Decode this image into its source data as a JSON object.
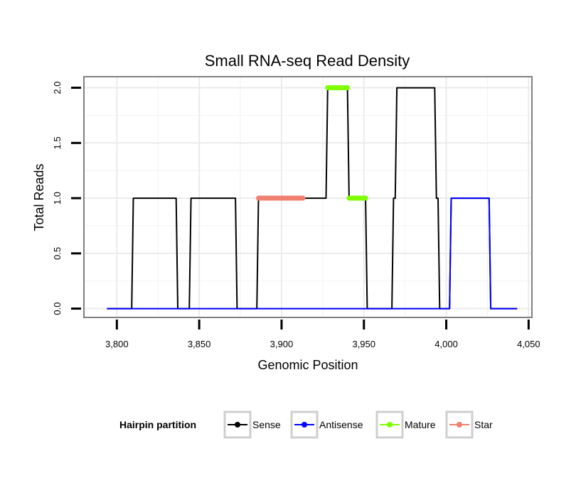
{
  "chart_data": {
    "type": "line",
    "title": "Small RNA-seq Read Density",
    "xlabel": "Genomic Position",
    "ylabel": "Total Reads",
    "xlim": [
      3780,
      4052
    ],
    "ylim": [
      -0.08,
      2.1
    ],
    "xticks": [
      3800,
      3850,
      3900,
      3950,
      4000,
      4050
    ],
    "xtick_labels": [
      "3,800",
      "3,850",
      "3,900",
      "3,950",
      "4,000",
      "4,050"
    ],
    "yticks": [
      0,
      0.5,
      1,
      1.5,
      2
    ],
    "ytick_labels": [
      "0.0",
      "0.5",
      "1.0",
      "1.5",
      "2.0"
    ],
    "grid": true,
    "series": [
      {
        "name": "Sense",
        "color": "#000000",
        "kind": "line",
        "x": [
          3794,
          3809,
          3810,
          3836,
          3837,
          3844,
          3845,
          3872,
          3873,
          3885,
          3886,
          3927,
          3928,
          3940,
          3941,
          3951,
          3952,
          3967,
          3968,
          3969,
          3970,
          3993,
          3994,
          3995,
          3996,
          4002,
          4003,
          4026,
          4027,
          4043
        ],
        "y": [
          0,
          0,
          1,
          1,
          0,
          0,
          1,
          1,
          0,
          0,
          1,
          1,
          2,
          2,
          1,
          1,
          0,
          0,
          1,
          1,
          2,
          2,
          1,
          1,
          0,
          0,
          1,
          1,
          0,
          0
        ]
      },
      {
        "name": "Antisense",
        "color": "#0000ff",
        "kind": "line",
        "x": [
          3794,
          4002,
          4003,
          4026,
          4027,
          4043
        ],
        "y": [
          0,
          0,
          1,
          1,
          0,
          0
        ]
      },
      {
        "name": "Mature",
        "color": "#7fff00",
        "kind": "segment",
        "segments": [
          {
            "x0": 3928,
            "x1": 3940,
            "y": 2
          },
          {
            "x0": 3941,
            "x1": 3951,
            "y": 1
          }
        ]
      },
      {
        "name": "Star",
        "color": "#f08070",
        "kind": "segment",
        "segments": [
          {
            "x0": 3886,
            "x1": 3913,
            "y": 1
          }
        ]
      }
    ],
    "legend": {
      "title": "Hairpin partition",
      "placement": "bottom",
      "entries": [
        "Sense",
        "Antisense",
        "Mature",
        "Star"
      ]
    }
  }
}
